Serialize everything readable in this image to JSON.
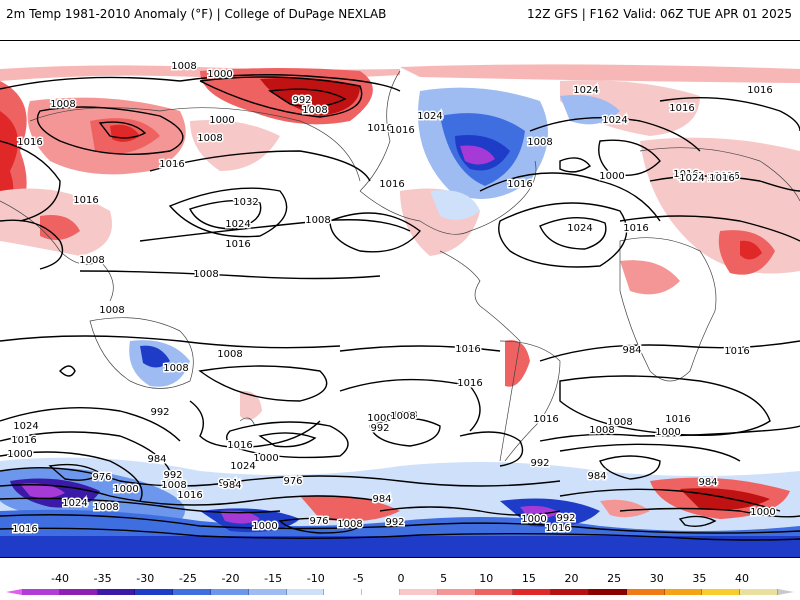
{
  "header": {
    "title_left": "2m Temp 1981-2010 Anomaly (°F) | College of DuPage NEXLAB",
    "title_right": "12Z GFS | F162 Valid: 06Z TUE APR 01 2025"
  },
  "colorbar": {
    "labels": [
      "-40",
      "-35",
      "-30",
      "-25",
      "-20",
      "-15",
      "-10",
      "-5",
      "0",
      "5",
      "10",
      "15",
      "20",
      "25",
      "30",
      "35",
      "40"
    ],
    "colors": [
      "#e05ef0",
      "#b23cd6",
      "#8d1fb4",
      "#3a1aa6",
      "#1f3cc8",
      "#3f6ee0",
      "#6d97ec",
      "#9ebcf2",
      "#cfe0fa",
      "#ffffff",
      "#ffffff",
      "#f8c8c8",
      "#f49696",
      "#ee6262",
      "#e02828",
      "#b81010",
      "#8c0000",
      "#f07a18",
      "#f5a418",
      "#f7cc2c",
      "#e9e0a0",
      "#c9c9c9"
    ]
  },
  "isobars": [
    {
      "text": "1008"
    },
    {
      "text": "1000"
    },
    {
      "text": "992"
    },
    {
      "text": "1008"
    },
    {
      "text": "1008"
    },
    {
      "text": "1000"
    },
    {
      "text": "1016"
    },
    {
      "text": "1008"
    },
    {
      "text": "1024"
    },
    {
      "text": "1016"
    },
    {
      "text": "1016"
    },
    {
      "text": "1016"
    },
    {
      "text": "1032"
    },
    {
      "text": "1024"
    },
    {
      "text": "1016"
    },
    {
      "text": "1008"
    },
    {
      "text": "1016"
    },
    {
      "text": "1016"
    },
    {
      "text": "1024"
    },
    {
      "text": "1024"
    },
    {
      "text": "1016"
    },
    {
      "text": "1008"
    },
    {
      "text": "1016"
    },
    {
      "text": "1016"
    },
    {
      "text": "1000"
    },
    {
      "text": "1024"
    },
    {
      "text": "1016"
    },
    {
      "text": "1016"
    },
    {
      "text": "1008"
    },
    {
      "text": "1008"
    },
    {
      "text": "1008"
    },
    {
      "text": "1008"
    },
    {
      "text": "1008"
    },
    {
      "text": "1016"
    },
    {
      "text": "1016"
    },
    {
      "text": "1016"
    },
    {
      "text": "1024"
    },
    {
      "text": "1016"
    },
    {
      "text": "1000"
    },
    {
      "text": "992"
    },
    {
      "text": "1024"
    },
    {
      "text": "1016"
    },
    {
      "text": "1000"
    },
    {
      "text": "992"
    },
    {
      "text": "1008"
    },
    {
      "text": "1016"
    },
    {
      "text": "1016"
    },
    {
      "text": "1008"
    },
    {
      "text": "984"
    },
    {
      "text": "1000"
    },
    {
      "text": "976"
    },
    {
      "text": "984"
    },
    {
      "text": "992"
    },
    {
      "text": "1008"
    },
    {
      "text": "1000"
    },
    {
      "text": "1024"
    },
    {
      "text": "1008"
    },
    {
      "text": "984"
    },
    {
      "text": "1016"
    },
    {
      "text": "976"
    },
    {
      "text": "984"
    },
    {
      "text": "1000"
    },
    {
      "text": "992"
    },
    {
      "text": "1008"
    },
    {
      "text": "1016"
    },
    {
      "text": "992"
    },
    {
      "text": "1000"
    },
    {
      "text": "992"
    },
    {
      "text": "1016"
    },
    {
      "text": "1008"
    },
    {
      "text": "984"
    },
    {
      "text": "1000"
    },
    {
      "text": "1016"
    },
    {
      "text": "1016"
    },
    {
      "text": "984"
    },
    {
      "text": "1000"
    },
    {
      "text": "976"
    },
    {
      "text": "1024"
    },
    {
      "text": "1016"
    },
    {
      "text": "1008"
    },
    {
      "text": "984"
    },
    {
      "text": "1016"
    }
  ]
}
